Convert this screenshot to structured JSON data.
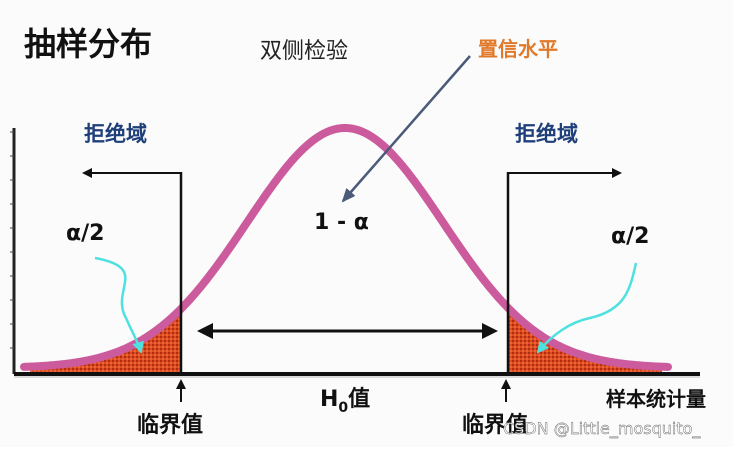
{
  "title": "抽样分布",
  "subtitle": "双侧检验",
  "confidence_label": "置信水平",
  "center_label": "1 - α",
  "rejection_left": "拒绝域",
  "rejection_right": "拒绝域",
  "tail_left": "α/2",
  "tail_right": "α/2",
  "critical_left": "临界值",
  "critical_right": "临界值",
  "h0_prefix": "H",
  "h0_sub": "0",
  "h0_suffix": "值",
  "axis_label": "样本统计量",
  "watermark": "CSDN @Little_mosquito_",
  "colors": {
    "curve": "#cc5b9d",
    "tail_fill": "#e0401b",
    "navy": "#1f3f7a",
    "orange": "#e07a2a",
    "teal": "#4fe0e0",
    "arrow_gray": "#4a5a78"
  }
}
